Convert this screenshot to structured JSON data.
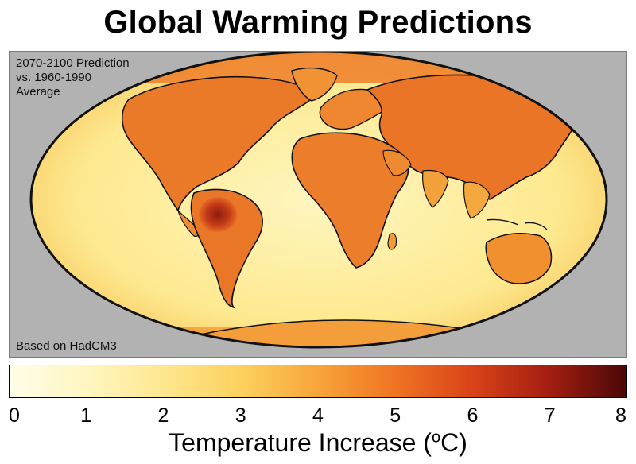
{
  "title": "Global Warming Predictions",
  "map": {
    "note_lines": [
      "2070-2100 Prediction",
      "vs. 1960-1990",
      "Average"
    ],
    "model_note": "Based on HadCM3",
    "projection": "Mollweide",
    "background_color": "#b2b2b2"
  },
  "colorbar": {
    "min": 0,
    "max": 8,
    "ticks": [
      "0",
      "1",
      "2",
      "3",
      "4",
      "5",
      "6",
      "7",
      "8"
    ],
    "colors": [
      "#fffde9",
      "#fff6c2",
      "#fee78e",
      "#fcd15e",
      "#f8a43a",
      "#ef7423",
      "#d94318",
      "#a31e12",
      "#4a0807"
    ],
    "label_prefix": "Temperature Increase (",
    "label_unit_sup": "o",
    "label_suffix": "C)"
  }
}
